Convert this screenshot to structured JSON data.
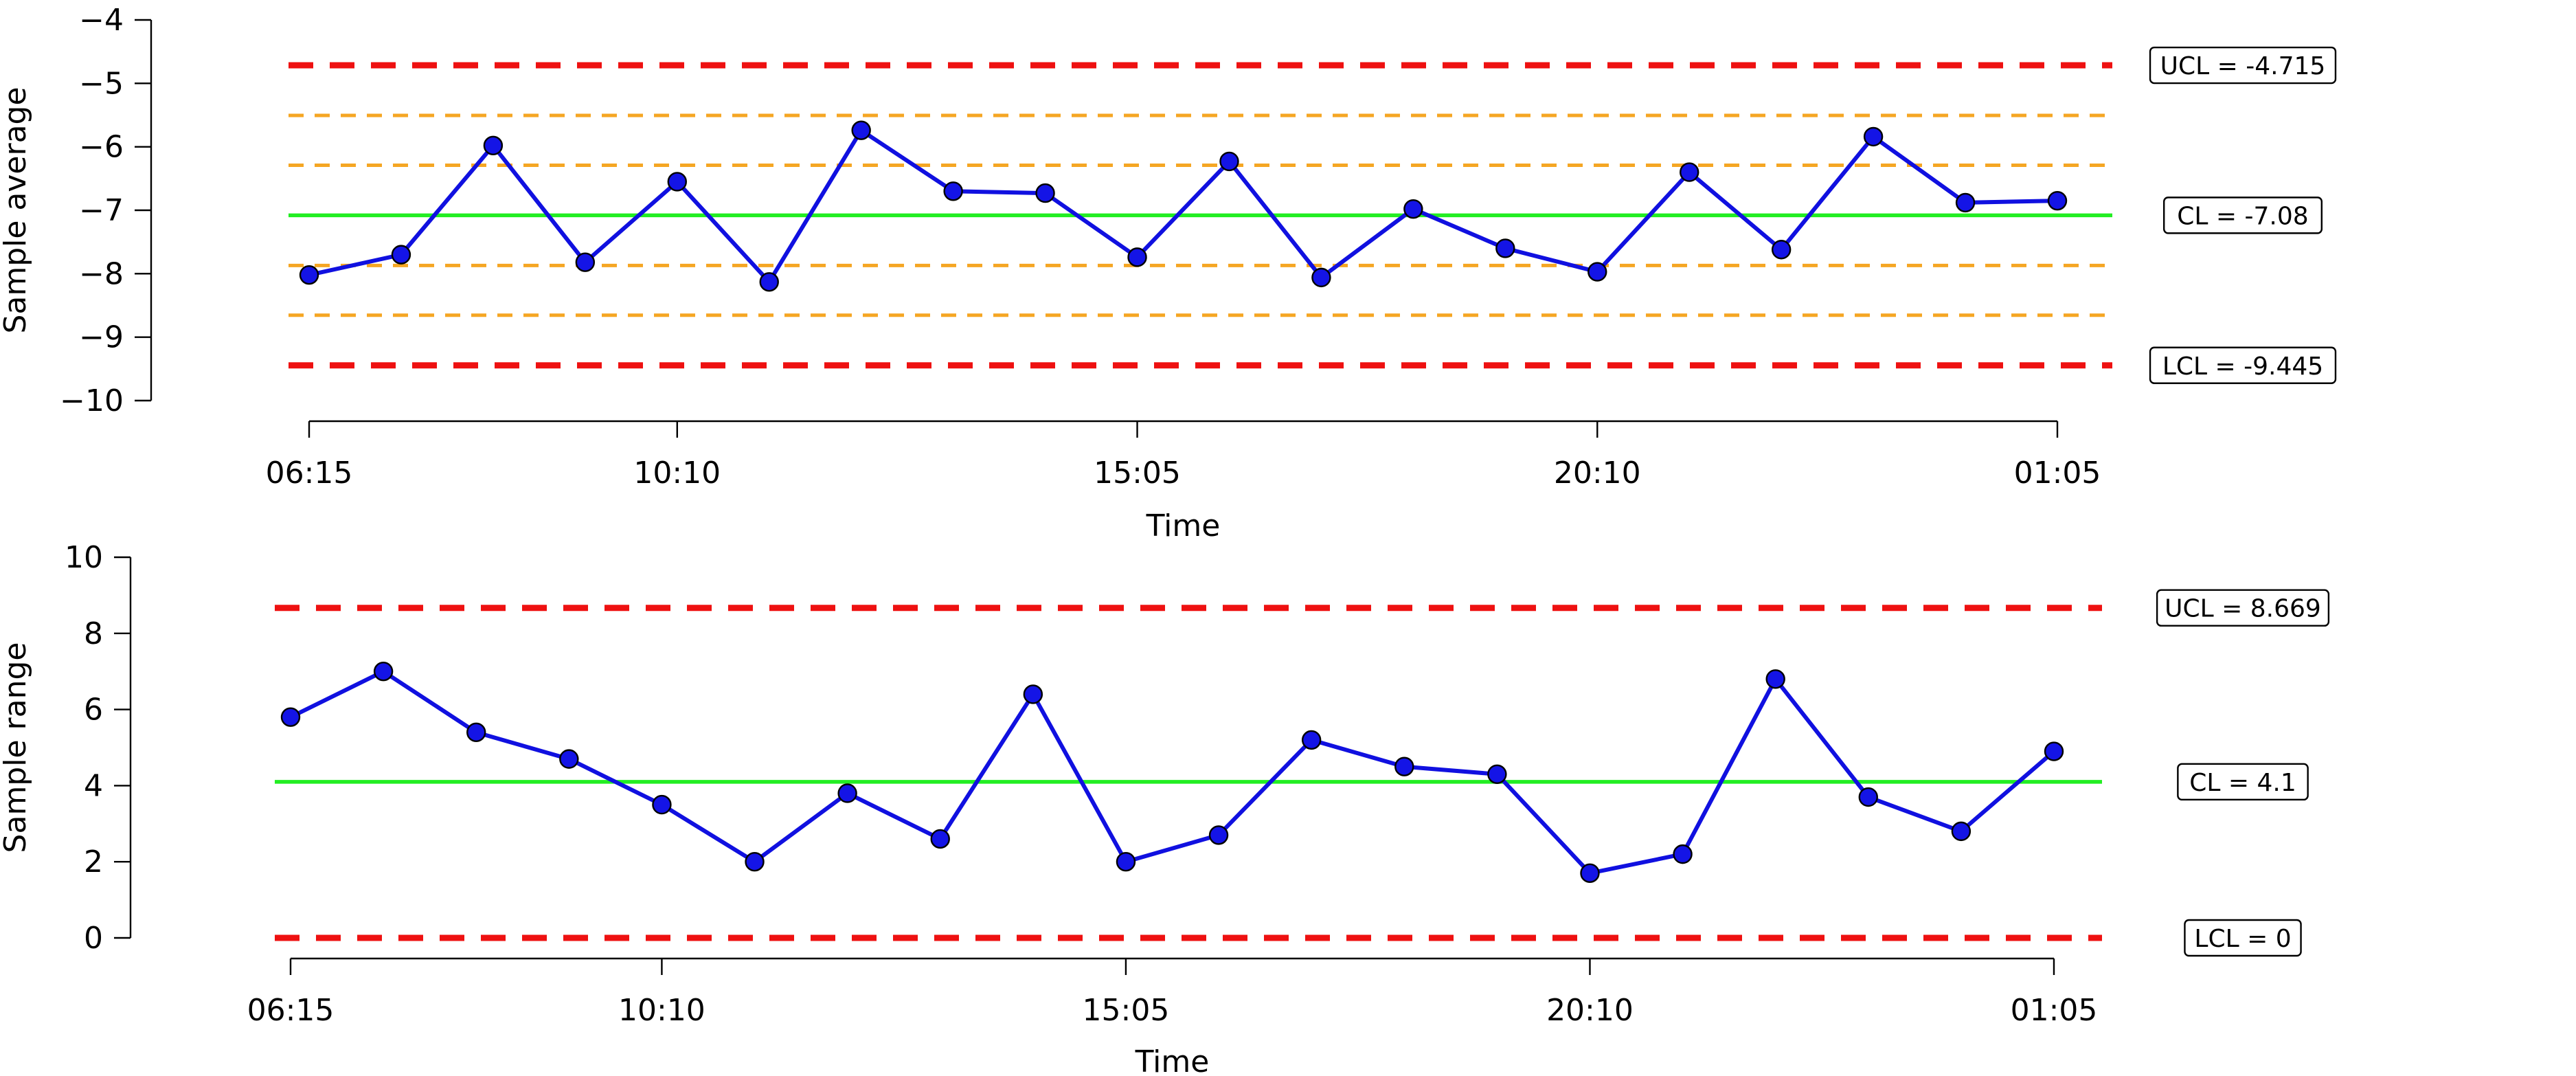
{
  "chart_data": [
    {
      "type": "line",
      "xlabel": "Time",
      "ylabel": "Sample average",
      "ylim": [
        -10,
        -4
      ],
      "yticks": [
        -10,
        -9,
        -8,
        -7,
        -6,
        -5,
        -4
      ],
      "ytick_labels": [
        "−10",
        "−9",
        "−8",
        "−7",
        "−6",
        "−5",
        "−4"
      ],
      "xtick_labels": [
        "06:15",
        "10:10",
        "15:05",
        "20:10",
        "01:05"
      ],
      "xtick_index": [
        0,
        4,
        9,
        14,
        19
      ],
      "x": [
        "06:15",
        "",
        "",
        "",
        "10:10",
        "",
        "",
        "",
        "",
        "15:05",
        "",
        "",
        "",
        "",
        "20:10",
        "",
        "",
        "",
        "",
        "01:05"
      ],
      "values": [
        -8.02,
        -7.7,
        -5.98,
        -7.82,
        -6.55,
        -8.13,
        -5.74,
        -6.7,
        -6.73,
        -7.74,
        -6.23,
        -8.06,
        -6.98,
        -7.6,
        -7.97,
        -6.4,
        -7.62,
        -5.84,
        -6.88,
        -6.85
      ],
      "reference_lines": [
        {
          "kind": "limit",
          "value": -4.715,
          "label": "UCL = -4.715"
        },
        {
          "kind": "zone",
          "value": -5.505,
          "label": ""
        },
        {
          "kind": "zone",
          "value": -6.29,
          "label": ""
        },
        {
          "kind": "center",
          "value": -7.08,
          "label": "CL = -7.08"
        },
        {
          "kind": "zone",
          "value": -7.87,
          "label": ""
        },
        {
          "kind": "zone",
          "value": -8.655,
          "label": ""
        },
        {
          "kind": "limit",
          "value": -9.445,
          "label": "LCL = -9.445"
        }
      ]
    },
    {
      "type": "line",
      "xlabel": "Time",
      "ylabel": "Sample range",
      "ylim": [
        0,
        10
      ],
      "yticks": [
        0,
        2,
        4,
        6,
        8,
        10
      ],
      "ytick_labels": [
        "0",
        "2",
        "4",
        "6",
        "8",
        "10"
      ],
      "xtick_labels": [
        "06:15",
        "10:10",
        "15:05",
        "20:10",
        "01:05"
      ],
      "xtick_index": [
        0,
        4,
        9,
        14,
        19
      ],
      "x": [
        "06:15",
        "",
        "",
        "",
        "10:10",
        "",
        "",
        "",
        "",
        "15:05",
        "",
        "",
        "",
        "",
        "20:10",
        "",
        "",
        "",
        "",
        "01:05"
      ],
      "values": [
        5.8,
        7.0,
        5.4,
        4.7,
        3.5,
        2.0,
        3.8,
        2.6,
        6.4,
        2.0,
        2.7,
        5.2,
        4.5,
        4.3,
        1.7,
        2.2,
        6.8,
        3.7,
        2.8,
        4.9
      ],
      "reference_lines": [
        {
          "kind": "limit",
          "value": 8.669,
          "label": "UCL = 8.669"
        },
        {
          "kind": "center",
          "value": 4.1,
          "label": "CL = 4.1"
        },
        {
          "kind": "limit",
          "value": 0,
          "label": "LCL = 0"
        }
      ]
    }
  ],
  "colors": {
    "series": "#1010e0",
    "point_fill": "#1414e6",
    "limit": "#ee1111",
    "center": "#22ee22",
    "zone": "#f5a623",
    "axis": "#000000"
  }
}
